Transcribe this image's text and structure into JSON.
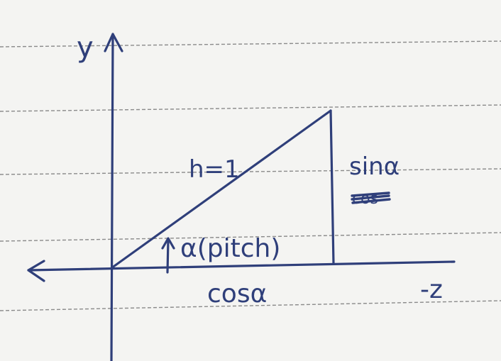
{
  "labels": {
    "y_axis": "y",
    "hypotenuse": "h=1",
    "opposite": "sinα",
    "opposite_crossed": "cos",
    "angle": "α(pitch)",
    "adjacent": "cosα",
    "x_axis": "-z"
  },
  "colors": {
    "paper": "#f4f4f2",
    "rule_line": "#8a8a8a",
    "ink": "#2f3f7a"
  }
}
